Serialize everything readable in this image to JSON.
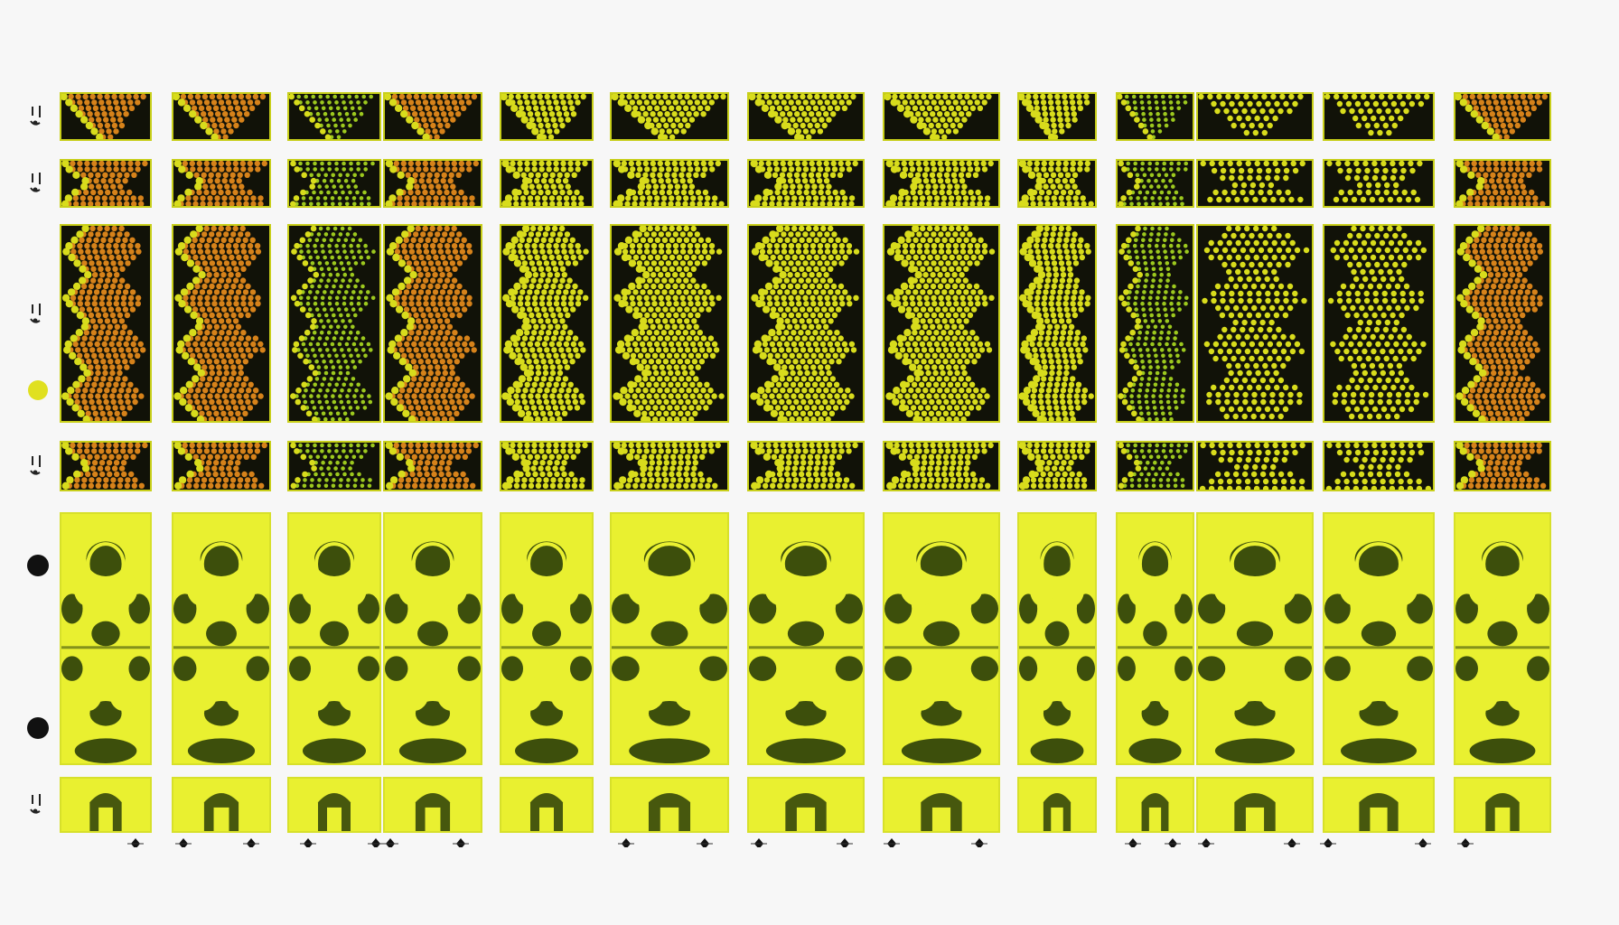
{
  "figure": {
    "rows": [
      {
        "kind": "lattice",
        "shape": "triangle"
      },
      {
        "kind": "lattice",
        "shape": "waist"
      },
      {
        "kind": "lattice",
        "shape": "diamond-chain"
      },
      {
        "kind": "lattice",
        "shape": "waist"
      },
      {
        "kind": "fringe",
        "shape": "ring-and-lobes"
      },
      {
        "kind": "fringe",
        "shape": "arch"
      }
    ],
    "columns": [
      {
        "tint": "orange"
      },
      {
        "tint": "orange"
      },
      {
        "tint": "green"
      },
      {
        "tint": "orange"
      },
      {
        "tint": "yellow"
      },
      {
        "tint": "yellow"
      },
      {
        "tint": "yellow"
      },
      {
        "tint": "yellow"
      },
      {
        "tint": "yellow"
      },
      {
        "tint": "green"
      },
      {
        "tint": "sparse"
      },
      {
        "tint": "sparse"
      },
      {
        "tint": "orange"
      }
    ],
    "markers": [
      {
        "row": 0,
        "icon": "row-marker-icon"
      },
      {
        "row": 1,
        "icon": "row-marker-icon"
      },
      {
        "row": 2,
        "icon": "row-marker-icon"
      },
      {
        "row": 3,
        "icon": "row-marker-icon"
      },
      {
        "row": 5,
        "icon": "row-marker-icon"
      }
    ],
    "legend_dots": [
      {
        "color": "#e0e020"
      },
      {
        "color": "#111111"
      },
      {
        "color": "#111111"
      }
    ],
    "colors": {
      "lattice_bg": "#111208",
      "spot_yellow": "#d8dc1c",
      "spot_orange": "#d6821a",
      "spot_green": "#9cc81e",
      "fringe_bright": "#e9f030",
      "fringe_dark": "#1e3206",
      "border": "#c8cf1a"
    }
  }
}
